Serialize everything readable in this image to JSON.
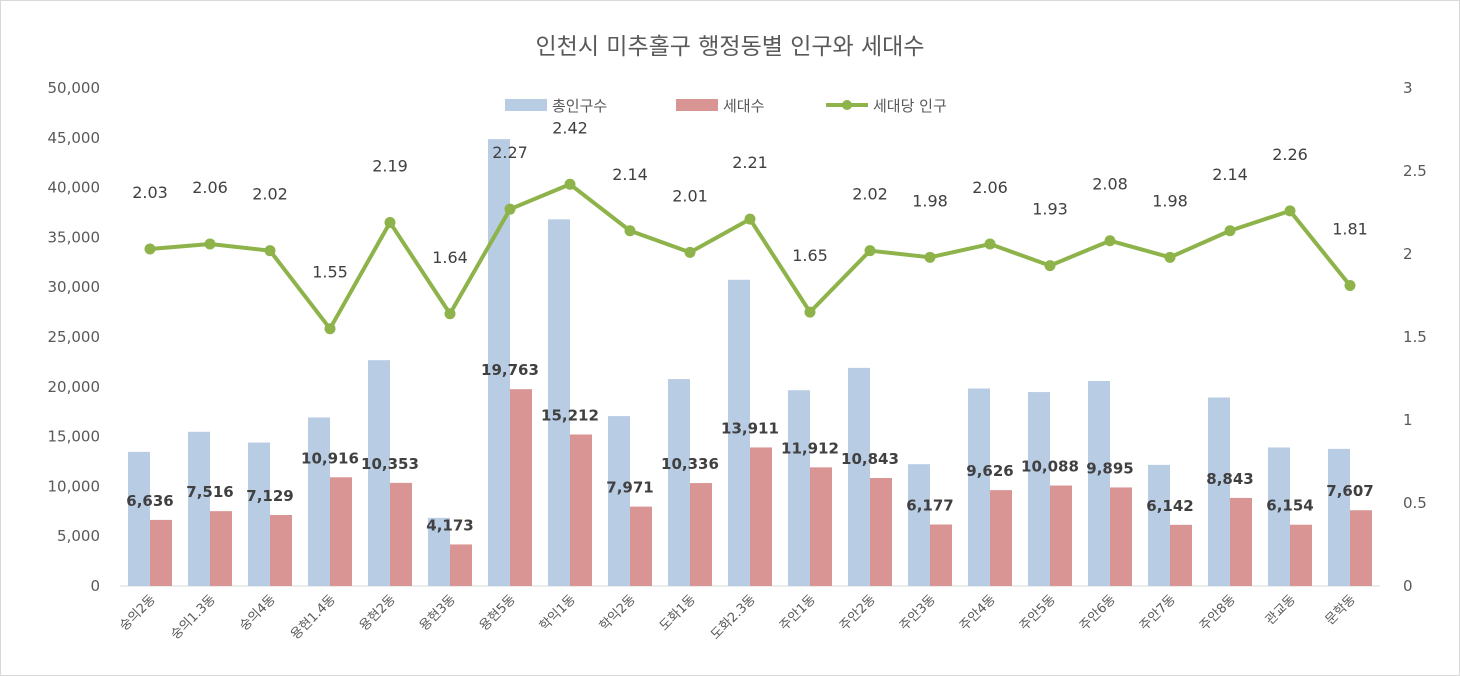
{
  "chart_data": {
    "type": "bar",
    "title": "인천시 미추홀구 행정동별 인구와 세대수",
    "categories": [
      "숭의2동",
      "숭의1.3동",
      "숭의4동",
      "용현1.4동",
      "용현2동",
      "용현3동",
      "용현5동",
      "학익1동",
      "학익2동",
      "도화1동",
      "도화2.3동",
      "주안1동",
      "주안2동",
      "주안3동",
      "주안4동",
      "주안5동",
      "주안6동",
      "주안7동",
      "주안8동",
      "관교동",
      "문학동"
    ],
    "series": [
      {
        "name": "총인구수",
        "type": "bar",
        "axis": "left",
        "color": "#b8cce4",
        "values": [
          13468,
          15483,
          14401,
          16920,
          22673,
          6844,
          44862,
          36813,
          17058,
          20775,
          30743,
          19655,
          21901,
          12230,
          19830,
          19470,
          20582,
          12161,
          18924,
          13908,
          13769
        ]
      },
      {
        "name": "세대수",
        "type": "bar",
        "axis": "left",
        "color": "#d99594",
        "values": [
          6636,
          7516,
          7129,
          10916,
          10353,
          4173,
          19763,
          15212,
          7971,
          10336,
          13911,
          11912,
          10843,
          6177,
          9626,
          10088,
          9895,
          6142,
          8843,
          6154,
          7607
        ],
        "labels": [
          "6,636",
          "7,516",
          "7,129",
          "10,916",
          "10,353",
          "4,173",
          "19,763",
          "15,212",
          "7,971",
          "10,336",
          "13,911",
          "11,912",
          "10,843",
          "6,177",
          "9,626",
          "10,088",
          "9,895",
          "6,142",
          "8,843",
          "6,154",
          "7,607"
        ]
      },
      {
        "name": "세대당 인구",
        "type": "line",
        "axis": "right",
        "color": "#8db34a",
        "values": [
          2.03,
          2.06,
          2.02,
          1.55,
          2.19,
          1.64,
          2.27,
          2.42,
          2.14,
          2.01,
          2.21,
          1.65,
          2.02,
          1.98,
          2.06,
          1.93,
          2.08,
          1.98,
          2.14,
          2.26,
          1.81
        ],
        "labels": [
          "2.03",
          "2.06",
          "2.02",
          "1.55",
          "2.19",
          "1.64",
          "2.27",
          "2.42",
          "2.14",
          "2.01",
          "2.21",
          "1.65",
          "2.02",
          "1.98",
          "2.06",
          "1.93",
          "2.08",
          "1.98",
          "2.14",
          "2.26",
          "1.81"
        ]
      }
    ],
    "y_left": {
      "min": 0,
      "max": 50000,
      "step": 5000,
      "tick_labels": [
        "0",
        "5,000",
        "10,000",
        "15,000",
        "20,000",
        "25,000",
        "30,000",
        "35,000",
        "40,000",
        "45,000",
        "50,000"
      ]
    },
    "y_right": {
      "min": 0,
      "max": 3,
      "step": 0.5,
      "tick_labels": [
        "0",
        "0.5",
        "1",
        "1.5",
        "2",
        "2.5",
        "3"
      ]
    },
    "legend": {
      "position": "top",
      "items": [
        "총인구수",
        "세대수",
        "세대당 인구"
      ]
    },
    "grid": false
  }
}
